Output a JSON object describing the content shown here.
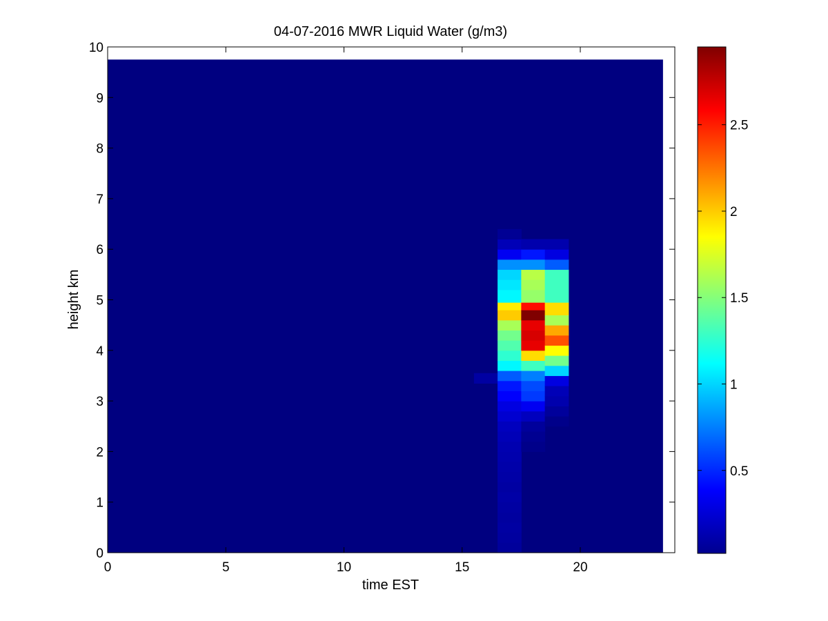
{
  "chart_data": {
    "type": "heatmap",
    "title": "04-07-2016 MWR Liquid Water (g/m3)",
    "xlabel": "time EST",
    "ylabel": "height km",
    "xlim": [
      0,
      24
    ],
    "ylim": [
      0,
      10
    ],
    "x_ticks": [
      "0",
      "5",
      "10",
      "15",
      "20"
    ],
    "y_ticks": [
      "0",
      "1",
      "2",
      "3",
      "4",
      "5",
      "6",
      "7",
      "8",
      "9",
      "10"
    ],
    "colormap": "jet",
    "colorbar": {
      "range": [
        0.02,
        2.95
      ],
      "ticks": [
        "0.5",
        "1",
        "1.5",
        "2",
        "2.5"
      ],
      "placement": "right"
    },
    "data_extent": {
      "x": [
        0,
        23.5
      ],
      "y": [
        0,
        9.75
      ]
    },
    "background_value": 0.02,
    "columns": [
      {
        "x0": 15.5,
        "x1": 16.5,
        "cells": [
          {
            "y0": 3.35,
            "y1": 3.55,
            "v": 0.12
          }
        ]
      },
      {
        "x0": 16.5,
        "x1": 17.5,
        "cells": [
          {
            "y0": 0.0,
            "y1": 0.2,
            "v": 0.1
          },
          {
            "y0": 0.2,
            "y1": 0.4,
            "v": 0.11
          },
          {
            "y0": 0.4,
            "y1": 0.6,
            "v": 0.12
          },
          {
            "y0": 0.6,
            "y1": 0.8,
            "v": 0.11
          },
          {
            "y0": 0.8,
            "y1": 1.0,
            "v": 0.12
          },
          {
            "y0": 1.0,
            "y1": 1.2,
            "v": 0.13
          },
          {
            "y0": 1.2,
            "y1": 1.4,
            "v": 0.12
          },
          {
            "y0": 1.4,
            "y1": 1.6,
            "v": 0.13
          },
          {
            "y0": 1.6,
            "y1": 1.8,
            "v": 0.14
          },
          {
            "y0": 1.8,
            "y1": 2.0,
            "v": 0.15
          },
          {
            "y0": 2.0,
            "y1": 2.2,
            "v": 0.16
          },
          {
            "y0": 2.2,
            "y1": 2.4,
            "v": 0.18
          },
          {
            "y0": 2.4,
            "y1": 2.6,
            "v": 0.2
          },
          {
            "y0": 2.6,
            "y1": 2.8,
            "v": 0.25
          },
          {
            "y0": 2.8,
            "y1": 3.0,
            "v": 0.3
          },
          {
            "y0": 3.0,
            "y1": 3.2,
            "v": 0.38
          },
          {
            "y0": 3.2,
            "y1": 3.4,
            "v": 0.45
          },
          {
            "y0": 3.4,
            "y1": 3.6,
            "v": 0.65
          },
          {
            "y0": 3.6,
            "y1": 3.8,
            "v": 1.1
          },
          {
            "y0": 3.8,
            "y1": 4.0,
            "v": 1.25
          },
          {
            "y0": 4.0,
            "y1": 4.2,
            "v": 1.35
          },
          {
            "y0": 4.2,
            "y1": 4.4,
            "v": 1.45
          },
          {
            "y0": 4.4,
            "y1": 4.6,
            "v": 1.6
          },
          {
            "y0": 4.6,
            "y1": 4.8,
            "v": 2.0
          },
          {
            "y0": 4.8,
            "y1": 4.95,
            "v": 1.9
          },
          {
            "y0": 4.95,
            "y1": 5.2,
            "v": 1.1
          },
          {
            "y0": 5.2,
            "y1": 5.4,
            "v": 1.05
          },
          {
            "y0": 5.4,
            "y1": 5.6,
            "v": 1.0
          },
          {
            "y0": 5.6,
            "y1": 5.8,
            "v": 0.8
          },
          {
            "y0": 5.8,
            "y1": 6.0,
            "v": 0.35
          },
          {
            "y0": 6.0,
            "y1": 6.2,
            "v": 0.18
          },
          {
            "y0": 6.2,
            "y1": 6.4,
            "v": 0.08
          }
        ]
      },
      {
        "x0": 17.5,
        "x1": 18.5,
        "cells": [
          {
            "y0": 2.0,
            "y1": 2.2,
            "v": 0.05
          },
          {
            "y0": 2.2,
            "y1": 2.4,
            "v": 0.07
          },
          {
            "y0": 2.4,
            "y1": 2.6,
            "v": 0.1
          },
          {
            "y0": 2.6,
            "y1": 2.8,
            "v": 0.2
          },
          {
            "y0": 2.8,
            "y1": 3.0,
            "v": 0.35
          },
          {
            "y0": 3.0,
            "y1": 3.2,
            "v": 0.55
          },
          {
            "y0": 3.2,
            "y1": 3.4,
            "v": 0.6
          },
          {
            "y0": 3.4,
            "y1": 3.6,
            "v": 0.75
          },
          {
            "y0": 3.6,
            "y1": 3.8,
            "v": 1.3
          },
          {
            "y0": 3.8,
            "y1": 4.0,
            "v": 1.95
          },
          {
            "y0": 4.0,
            "y1": 4.2,
            "v": 2.65
          },
          {
            "y0": 4.2,
            "y1": 4.4,
            "v": 2.7
          },
          {
            "y0": 4.4,
            "y1": 4.6,
            "v": 2.65
          },
          {
            "y0": 4.6,
            "y1": 4.8,
            "v": 2.95
          },
          {
            "y0": 4.8,
            "y1": 4.95,
            "v": 2.55
          },
          {
            "y0": 4.95,
            "y1": 5.2,
            "v": 1.55
          },
          {
            "y0": 5.2,
            "y1": 5.4,
            "v": 1.6
          },
          {
            "y0": 5.4,
            "y1": 5.6,
            "v": 1.65
          },
          {
            "y0": 5.6,
            "y1": 5.8,
            "v": 0.8
          },
          {
            "y0": 5.8,
            "y1": 6.0,
            "v": 0.45
          },
          {
            "y0": 6.0,
            "y1": 6.2,
            "v": 0.15
          }
        ]
      },
      {
        "x0": 18.5,
        "x1": 19.5,
        "cells": [
          {
            "y0": 2.5,
            "y1": 2.7,
            "v": 0.05
          },
          {
            "y0": 2.7,
            "y1": 2.9,
            "v": 0.1
          },
          {
            "y0": 2.9,
            "y1": 3.1,
            "v": 0.15
          },
          {
            "y0": 3.1,
            "y1": 3.3,
            "v": 0.18
          },
          {
            "y0": 3.3,
            "y1": 3.5,
            "v": 0.3
          },
          {
            "y0": 3.5,
            "y1": 3.7,
            "v": 1.0
          },
          {
            "y0": 3.7,
            "y1": 3.9,
            "v": 1.45
          },
          {
            "y0": 3.9,
            "y1": 4.1,
            "v": 1.85
          },
          {
            "y0": 4.1,
            "y1": 4.3,
            "v": 2.35
          },
          {
            "y0": 4.3,
            "y1": 4.5,
            "v": 2.1
          },
          {
            "y0": 4.5,
            "y1": 4.7,
            "v": 1.6
          },
          {
            "y0": 4.7,
            "y1": 4.95,
            "v": 1.95
          },
          {
            "y0": 4.95,
            "y1": 5.6,
            "v": 1.3
          },
          {
            "y0": 5.6,
            "y1": 5.8,
            "v": 0.65
          },
          {
            "y0": 5.8,
            "y1": 6.0,
            "v": 0.3
          },
          {
            "y0": 6.0,
            "y1": 6.2,
            "v": 0.15
          }
        ]
      }
    ]
  }
}
